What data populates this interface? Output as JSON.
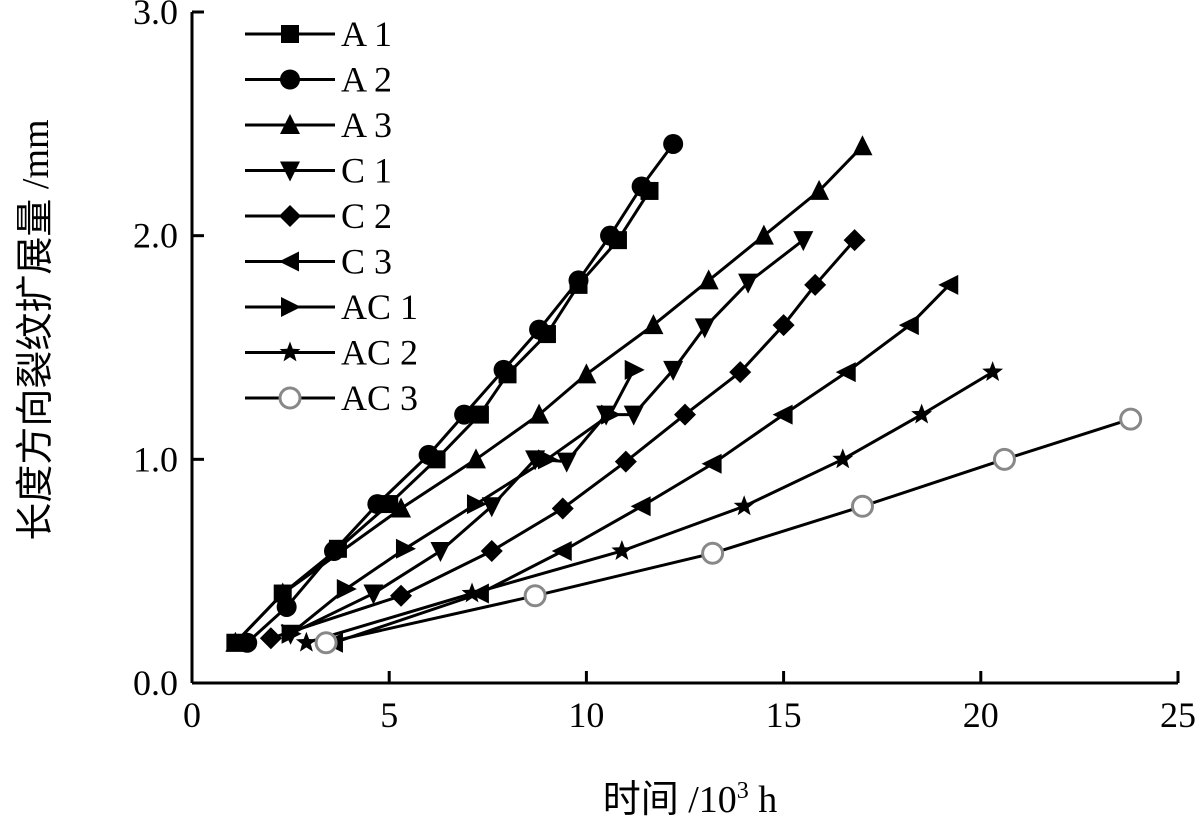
{
  "chart_data": {
    "type": "line",
    "title": "",
    "xlabel": "时间 /10³ h",
    "xlabel_main": "时间 /10",
    "xlabel_sup": "3",
    "xlabel_unit": " h",
    "ylabel": "长度方向裂纹扩展量 /mm",
    "xlim": [
      0,
      25
    ],
    "ylim": [
      0,
      3.0
    ],
    "xticks": [
      0,
      5,
      10,
      15,
      20,
      25
    ],
    "xtick_labels": [
      "0",
      "5",
      "10",
      "15",
      "20",
      "25"
    ],
    "yticks": [
      0,
      1.0,
      2.0,
      3.0
    ],
    "ytick_labels": [
      "0.0",
      "1.0",
      "2.0",
      "3.0"
    ],
    "grid": false,
    "legend_position": "top-left",
    "series": [
      {
        "name": "A 1",
        "marker": "square",
        "x": [
          1.1,
          2.3,
          3.7,
          5.0,
          6.2,
          7.3,
          8.0,
          9.0,
          9.8,
          10.8,
          11.6
        ],
        "y": [
          0.18,
          0.4,
          0.6,
          0.8,
          1.0,
          1.2,
          1.38,
          1.56,
          1.78,
          1.98,
          2.2
        ]
      },
      {
        "name": "A 2",
        "marker": "circle",
        "x": [
          1.4,
          2.4,
          3.6,
          4.7,
          6.0,
          6.9,
          7.9,
          8.8,
          9.8,
          10.6,
          11.4,
          12.2
        ],
        "y": [
          0.18,
          0.34,
          0.59,
          0.8,
          1.02,
          1.2,
          1.4,
          1.58,
          1.8,
          2.0,
          2.22,
          2.41
        ]
      },
      {
        "name": "A 3",
        "marker": "triangle-up",
        "x": [
          1.1,
          2.3,
          5.3,
          7.2,
          8.8,
          10.0,
          11.7,
          13.1,
          14.5,
          15.9,
          17.0
        ],
        "y": [
          0.18,
          0.4,
          0.78,
          1.0,
          1.2,
          1.38,
          1.6,
          1.8,
          2.0,
          2.2,
          2.4
        ]
      },
      {
        "name": "C 1",
        "marker": "triangle-down",
        "x": [
          2.5,
          4.6,
          6.3,
          7.6,
          8.7,
          9.5,
          10.5,
          11.2,
          12.2,
          13.0,
          14.1,
          15.5
        ],
        "y": [
          0.22,
          0.4,
          0.59,
          0.79,
          1.0,
          0.99,
          1.2,
          1.2,
          1.4,
          1.59,
          1.79,
          1.98
        ]
      },
      {
        "name": "C 2",
        "marker": "diamond",
        "x": [
          2.0,
          5.3,
          7.6,
          9.4,
          11.0,
          12.5,
          13.9,
          15.0,
          15.8,
          16.8
        ],
        "y": [
          0.2,
          0.39,
          0.59,
          0.78,
          0.99,
          1.2,
          1.39,
          1.6,
          1.78,
          1.98
        ]
      },
      {
        "name": "C 3",
        "marker": "triangle-left",
        "x": [
          3.6,
          7.3,
          9.4,
          11.4,
          13.2,
          15.0,
          16.6,
          18.2,
          19.2
        ],
        "y": [
          0.18,
          0.4,
          0.59,
          0.79,
          0.98,
          1.2,
          1.39,
          1.6,
          1.78
        ]
      },
      {
        "name": "AC 1",
        "marker": "triangle-right",
        "x": [
          2.5,
          3.9,
          5.4,
          7.2,
          9.0,
          10.6,
          11.2
        ],
        "y": [
          0.22,
          0.42,
          0.6,
          0.8,
          1.0,
          1.2,
          1.4
        ]
      },
      {
        "name": "AC 2",
        "marker": "star",
        "x": [
          2.9,
          7.1,
          10.9,
          14.0,
          16.5,
          18.5,
          20.3
        ],
        "y": [
          0.18,
          0.4,
          0.59,
          0.79,
          1.0,
          1.2,
          1.39
        ]
      },
      {
        "name": "AC 3",
        "marker": "open-circle",
        "x": [
          3.4,
          8.7,
          13.2,
          17.0,
          20.6,
          23.8
        ],
        "y": [
          0.18,
          0.39,
          0.58,
          0.79,
          1.0,
          1.18
        ]
      }
    ]
  }
}
